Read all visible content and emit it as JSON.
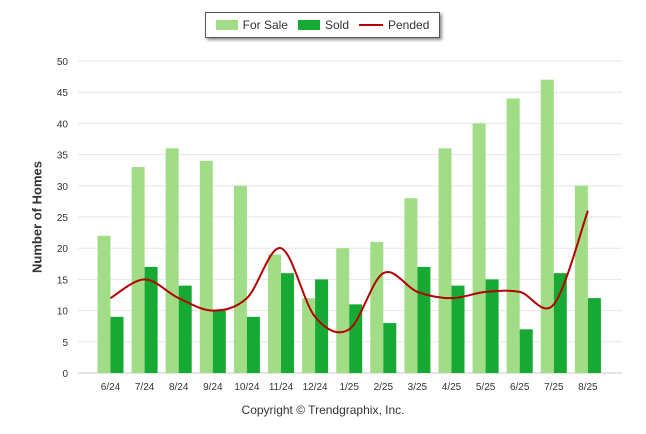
{
  "legend": {
    "for_sale": "For Sale",
    "sold": "Sold",
    "pended": "Pended"
  },
  "copyright": "Copyright © Trendgraphix, Inc.",
  "colors": {
    "for_sale": "#a1dc86",
    "sold": "#16a934",
    "pended": "#b40000",
    "grid": "#e6e6e6",
    "axis_text": "#333333"
  },
  "chart_data": {
    "type": "bar",
    "title": "",
    "xlabel": "",
    "ylabel": "Number of Homes",
    "ylim": [
      0,
      50
    ],
    "yticks": [
      0,
      5,
      10,
      15,
      20,
      25,
      30,
      35,
      40,
      45,
      50
    ],
    "grid": true,
    "legend_position": "top-center",
    "categories": [
      "6/24",
      "7/24",
      "8/24",
      "9/24",
      "10/24",
      "11/24",
      "12/24",
      "1/25",
      "2/25",
      "3/25",
      "4/25",
      "5/25",
      "6/25",
      "7/25",
      "8/25"
    ],
    "series": [
      {
        "name": "For Sale",
        "kind": "bar",
        "values": [
          22,
          33,
          36,
          34,
          30,
          19,
          12,
          20,
          21,
          28,
          36,
          40,
          44,
          47,
          30
        ]
      },
      {
        "name": "Sold",
        "kind": "bar",
        "values": [
          9,
          17,
          14,
          10,
          9,
          16,
          15,
          11,
          8,
          17,
          14,
          15,
          7,
          16,
          12
        ]
      },
      {
        "name": "Pended",
        "kind": "line",
        "values": [
          12,
          15,
          12,
          10,
          12,
          20,
          9,
          7,
          16,
          13,
          12,
          13,
          13,
          11,
          26
        ]
      }
    ]
  }
}
